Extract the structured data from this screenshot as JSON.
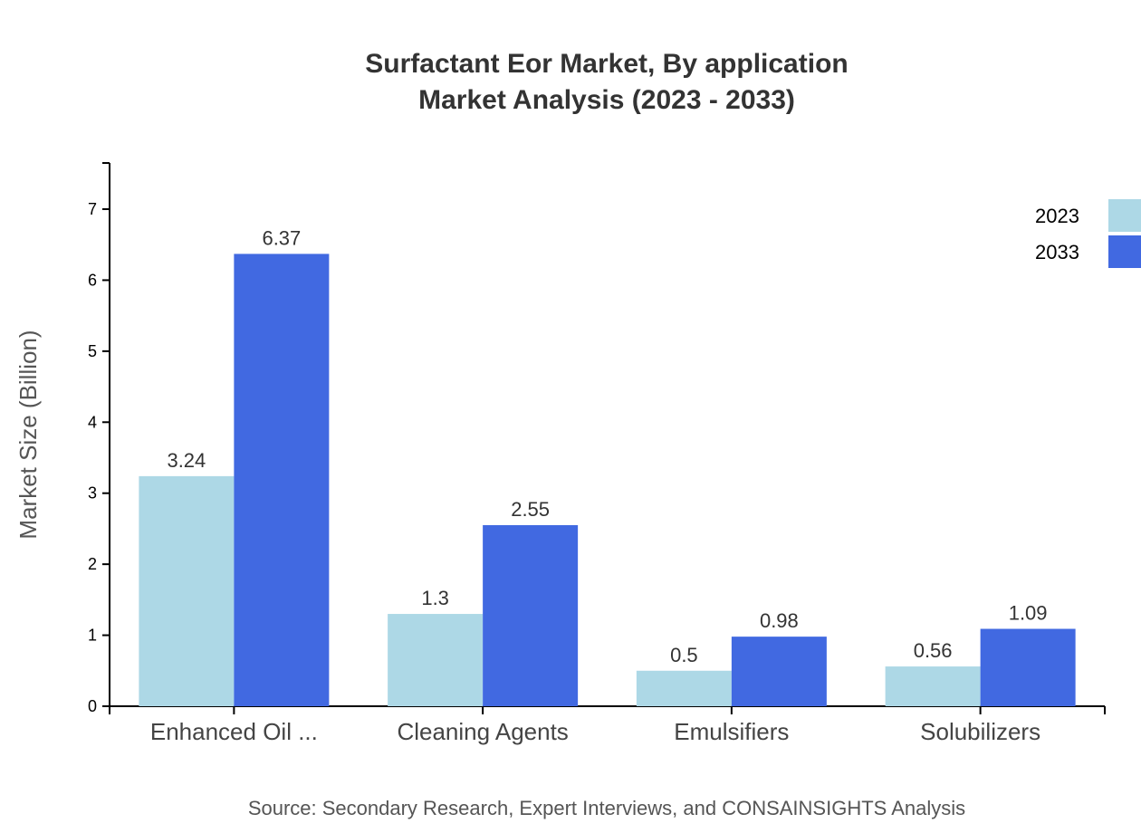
{
  "chart_data": {
    "type": "bar",
    "title": [
      "Surfactant Eor Market, By application",
      "Market Analysis (2023 - 2033)"
    ],
    "xlabel": "",
    "ylabel": "Market Size (Billion)",
    "ylim": [
      0,
      7.65
    ],
    "yticks": [
      0,
      1,
      2,
      3,
      4,
      5,
      6,
      7
    ],
    "categories": [
      "Enhanced Oil ...",
      "Cleaning Agents",
      "Emulsifiers",
      "Solubilizers"
    ],
    "series": [
      {
        "name": "2023",
        "color": "#ADD8E6",
        "values": [
          3.24,
          1.3,
          0.5,
          0.56
        ]
      },
      {
        "name": "2033",
        "color": "#4169E1",
        "values": [
          6.37,
          2.55,
          0.98,
          1.09
        ]
      }
    ],
    "legend": "top-right",
    "grid": false,
    "source": "Source: Secondary Research, Expert Interviews, and CONSAINSIGHTS Analysis"
  }
}
